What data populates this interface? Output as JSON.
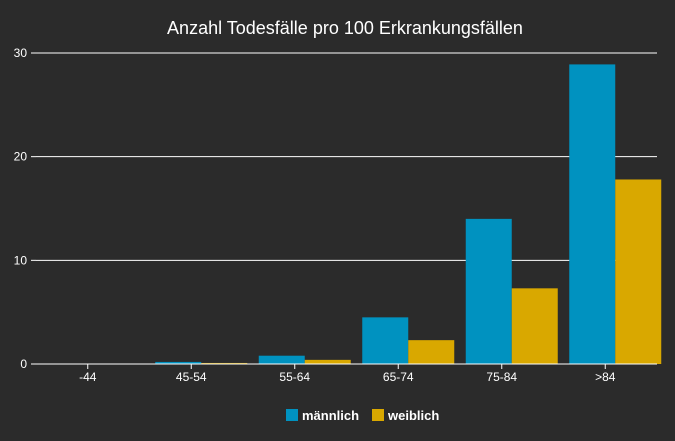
{
  "chart_data": {
    "type": "bar",
    "title": "Anzahl Todesfälle pro 100 Erkrankungsfällen",
    "xlabel": "",
    "ylabel": "",
    "categories": [
      "-44",
      "45-54",
      "55-64",
      "65-74",
      "75-84",
      ">84"
    ],
    "series": [
      {
        "name": "männlich",
        "color": "#0092c0",
        "values": [
          0.0,
          0.2,
          0.8,
          4.5,
          14.0,
          28.9
        ]
      },
      {
        "name": "weiblich",
        "color": "#d9a800",
        "values": [
          0.0,
          0.1,
          0.4,
          2.3,
          7.3,
          17.8
        ]
      }
    ],
    "ylim": [
      0,
      30
    ],
    "yticks": [
      "0",
      "10",
      "20",
      "30"
    ],
    "grid": true,
    "legend": "bottom-center"
  },
  "colors": {
    "background": "#2b2b2b",
    "grid": "#ffffff",
    "text": "#ffffff"
  }
}
